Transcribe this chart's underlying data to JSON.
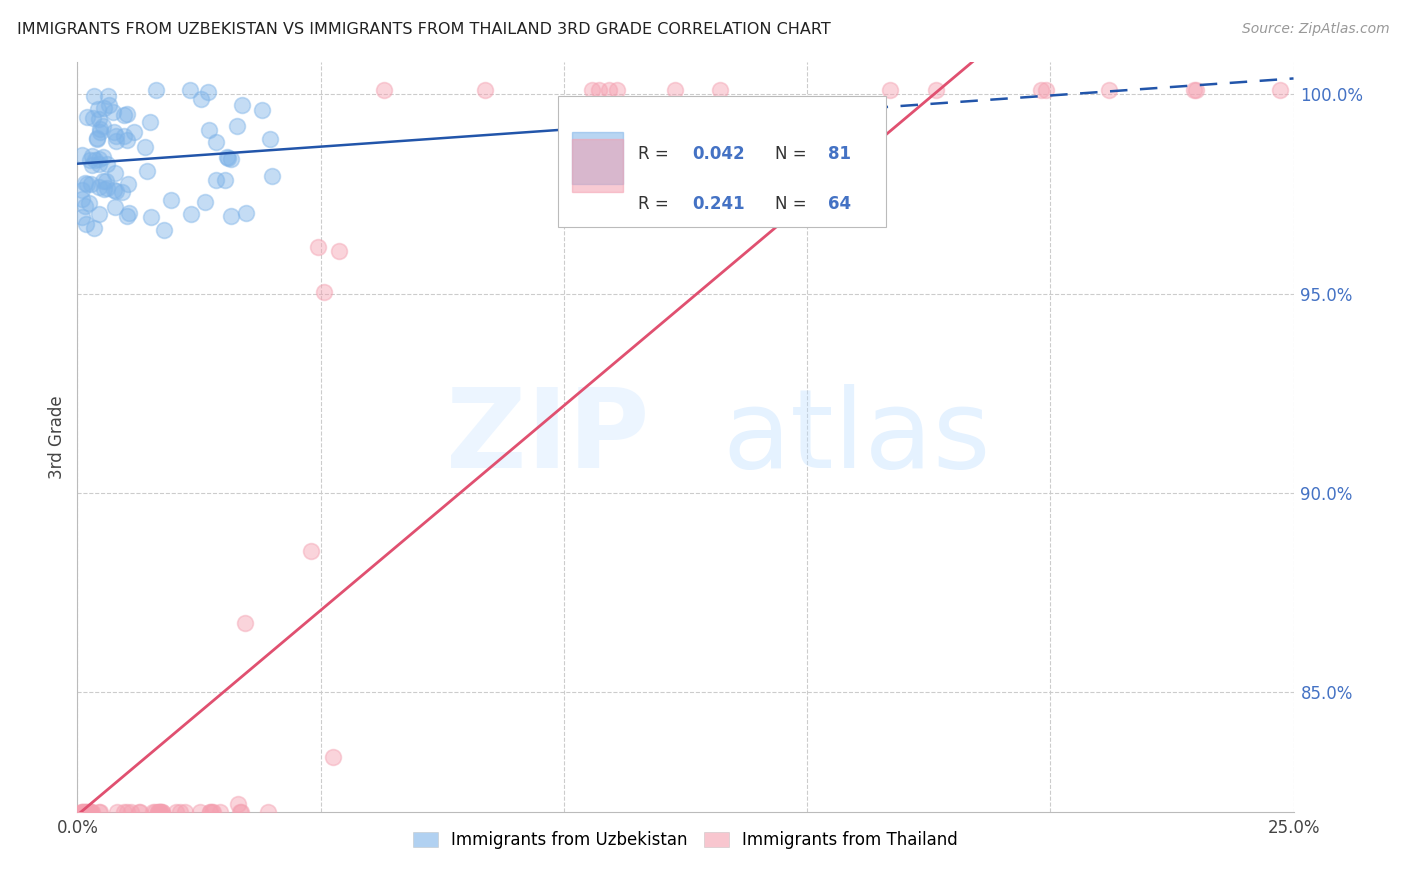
{
  "title": "IMMIGRANTS FROM UZBEKISTAN VS IMMIGRANTS FROM THAILAND 3RD GRADE CORRELATION CHART",
  "source": "Source: ZipAtlas.com",
  "ylabel": "3rd Grade",
  "xlim": [
    0.0,
    0.25
  ],
  "ylim": [
    0.82,
    1.008
  ],
  "xticks": [
    0.0,
    0.05,
    0.1,
    0.15,
    0.2,
    0.25
  ],
  "xticklabels": [
    "0.0%",
    "",
    "",
    "",
    "",
    "25.0%"
  ],
  "yticks": [
    0.85,
    0.9,
    0.95,
    1.0
  ],
  "yticklabels": [
    "85.0%",
    "90.0%",
    "95.0%",
    "100.0%"
  ],
  "blue_color": "#7EB3E8",
  "pink_color": "#F4A0B0",
  "blue_line_color": "#2255AA",
  "pink_line_color": "#E05070",
  "blue_scatter_color": "#7EB3E8",
  "pink_scatter_color": "#F4A0B0"
}
